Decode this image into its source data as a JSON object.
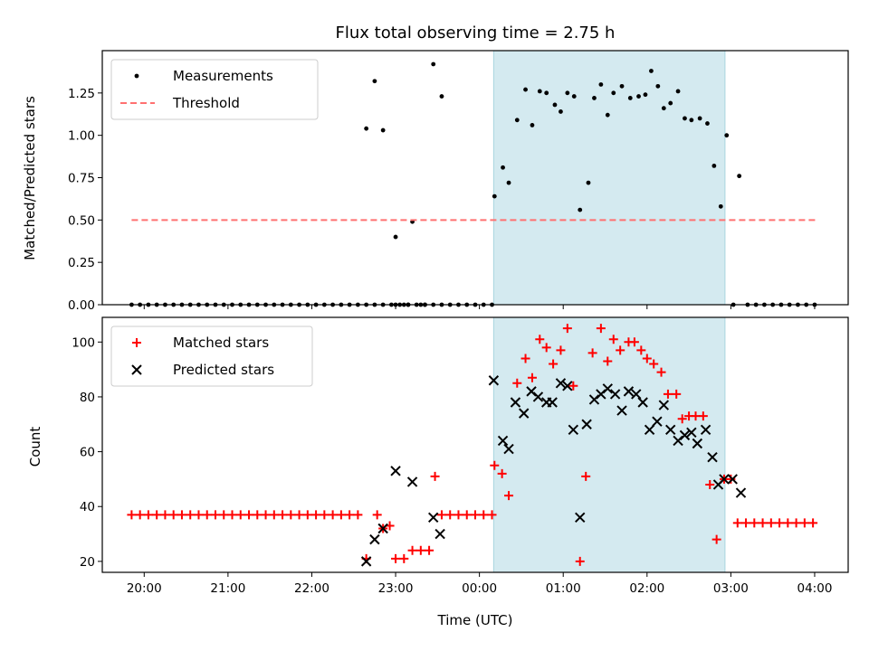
{
  "chart_data": [
    {
      "type": "scatter",
      "title": "Flux total observing time = 2.75 h",
      "xlabel": "",
      "ylabel": "Matched/Predicted stars",
      "x_unit": "hours since 20:00 UTC",
      "xlim": [
        -0.5,
        8.4
      ],
      "ylim": [
        0,
        1.5
      ],
      "yticks": [
        "0.00",
        "0.25",
        "0.50",
        "0.75",
        "1.00",
        "1.25"
      ],
      "yticks_values": [
        0,
        0.25,
        0.5,
        0.75,
        1.0,
        1.25
      ],
      "shaded_interval": [
        4.17,
        6.93
      ],
      "shade_color": "#d4eaf0",
      "legend": {
        "placement": "upper left",
        "entries": [
          "Measurements",
          "Threshold"
        ]
      },
      "series": [
        {
          "name": "Measurements",
          "marker": "dot",
          "color": "#000000",
          "points": [
            [
              -0.15,
              0
            ],
            [
              -0.05,
              0
            ],
            [
              0.05,
              0
            ],
            [
              0.15,
              0
            ],
            [
              0.25,
              0
            ],
            [
              0.35,
              0
            ],
            [
              0.45,
              0
            ],
            [
              0.55,
              0
            ],
            [
              0.65,
              0
            ],
            [
              0.75,
              0
            ],
            [
              0.85,
              0
            ],
            [
              0.95,
              0
            ],
            [
              1.05,
              0
            ],
            [
              1.15,
              0
            ],
            [
              1.25,
              0
            ],
            [
              1.35,
              0
            ],
            [
              1.45,
              0
            ],
            [
              1.55,
              0
            ],
            [
              1.65,
              0
            ],
            [
              1.75,
              0
            ],
            [
              1.85,
              0
            ],
            [
              1.95,
              0
            ],
            [
              2.05,
              0
            ],
            [
              2.15,
              0
            ],
            [
              2.25,
              0
            ],
            [
              2.35,
              0
            ],
            [
              2.45,
              0
            ],
            [
              2.55,
              0
            ],
            [
              2.65,
              0
            ],
            [
              2.75,
              0
            ],
            [
              2.85,
              0
            ],
            [
              2.95,
              0
            ],
            [
              3.05,
              0
            ],
            [
              3.15,
              0
            ],
            [
              3.25,
              0
            ],
            [
              3.35,
              0
            ],
            [
              3.45,
              0
            ],
            [
              3.55,
              0
            ],
            [
              3.0,
              0
            ],
            [
              3.1,
              0
            ],
            [
              3.15,
              0
            ],
            [
              3.3,
              0
            ],
            [
              3.35,
              0
            ],
            [
              2.65,
              1.04
            ],
            [
              2.75,
              1.32
            ],
            [
              2.85,
              1.03
            ],
            [
              3.0,
              0.4
            ],
            [
              3.2,
              0.49
            ],
            [
              3.45,
              1.42
            ],
            [
              3.55,
              1.23
            ],
            [
              3.65,
              0
            ],
            [
              3.75,
              0
            ],
            [
              3.85,
              0
            ],
            [
              3.95,
              0
            ],
            [
              4.05,
              0
            ],
            [
              4.15,
              0
            ],
            [
              4.18,
              0.64
            ],
            [
              4.28,
              0.81
            ],
            [
              4.35,
              0.72
            ],
            [
              4.45,
              1.09
            ],
            [
              4.55,
              1.27
            ],
            [
              4.63,
              1.06
            ],
            [
              4.72,
              1.26
            ],
            [
              4.8,
              1.25
            ],
            [
              4.9,
              1.18
            ],
            [
              4.97,
              1.14
            ],
            [
              5.05,
              1.25
            ],
            [
              5.13,
              1.23
            ],
            [
              5.2,
              0.56
            ],
            [
              5.3,
              0.72
            ],
            [
              5.37,
              1.22
            ],
            [
              5.45,
              1.3
            ],
            [
              5.53,
              1.12
            ],
            [
              5.6,
              1.25
            ],
            [
              5.7,
              1.29
            ],
            [
              5.8,
              1.22
            ],
            [
              5.9,
              1.23
            ],
            [
              5.98,
              1.24
            ],
            [
              6.05,
              1.38
            ],
            [
              6.13,
              1.29
            ],
            [
              6.2,
              1.16
            ],
            [
              6.28,
              1.19
            ],
            [
              6.37,
              1.26
            ],
            [
              6.45,
              1.1
            ],
            [
              6.53,
              1.09
            ],
            [
              6.63,
              1.1
            ],
            [
              6.72,
              1.07
            ],
            [
              6.8,
              0.82
            ],
            [
              6.88,
              0.58
            ],
            [
              6.95,
              1.0
            ],
            [
              7.1,
              0.76
            ],
            [
              7.03,
              0
            ],
            [
              7.2,
              0
            ],
            [
              7.3,
              0
            ],
            [
              7.4,
              0
            ],
            [
              7.5,
              0
            ],
            [
              7.6,
              0
            ],
            [
              7.7,
              0
            ],
            [
              7.8,
              0
            ],
            [
              7.9,
              0
            ],
            [
              8.0,
              0
            ]
          ]
        },
        {
          "name": "Threshold",
          "style": "dashed",
          "color": "#ff7070",
          "x": [
            -0.15,
            8.02
          ],
          "y": [
            0.5,
            0.5
          ]
        }
      ]
    },
    {
      "type": "scatter",
      "title": "",
      "xlabel": "Time (UTC)",
      "ylabel": "Count",
      "x_unit": "hours since 20:00 UTC",
      "xlim": [
        -0.5,
        8.4
      ],
      "ylim": [
        16,
        109
      ],
      "xticks": [
        "20:00",
        "21:00",
        "22:00",
        "23:00",
        "00:00",
        "01:00",
        "02:00",
        "03:00",
        "04:00"
      ],
      "xticks_values": [
        0,
        1,
        2,
        3,
        4,
        5,
        6,
        7,
        8
      ],
      "yticks": [
        "20",
        "40",
        "60",
        "80",
        "100"
      ],
      "yticks_values": [
        20,
        40,
        60,
        80,
        100
      ],
      "shaded_interval": [
        4.17,
        6.93
      ],
      "shade_color": "#d4eaf0",
      "legend": {
        "placement": "upper left",
        "entries": [
          "Matched stars",
          "Predicted stars"
        ]
      },
      "series": [
        {
          "name": "Matched stars",
          "marker": "plus",
          "color": "#ff0000",
          "points": [
            [
              -0.15,
              37
            ],
            [
              -0.05,
              37
            ],
            [
              0.05,
              37
            ],
            [
              0.15,
              37
            ],
            [
              0.25,
              37
            ],
            [
              0.35,
              37
            ],
            [
              0.45,
              37
            ],
            [
              0.55,
              37
            ],
            [
              0.65,
              37
            ],
            [
              0.75,
              37
            ],
            [
              0.85,
              37
            ],
            [
              0.95,
              37
            ],
            [
              1.05,
              37
            ],
            [
              1.15,
              37
            ],
            [
              1.25,
              37
            ],
            [
              1.35,
              37
            ],
            [
              1.45,
              37
            ],
            [
              1.55,
              37
            ],
            [
              1.65,
              37
            ],
            [
              1.75,
              37
            ],
            [
              1.85,
              37
            ],
            [
              1.95,
              37
            ],
            [
              2.05,
              37
            ],
            [
              2.15,
              37
            ],
            [
              2.25,
              37
            ],
            [
              2.35,
              37
            ],
            [
              2.45,
              37
            ],
            [
              2.55,
              37
            ],
            [
              2.65,
              21
            ],
            [
              2.78,
              37
            ],
            [
              2.85,
              32
            ],
            [
              2.93,
              33
            ],
            [
              3.0,
              21
            ],
            [
              3.1,
              21
            ],
            [
              3.2,
              24
            ],
            [
              3.3,
              24
            ],
            [
              3.4,
              24
            ],
            [
              3.47,
              51
            ],
            [
              3.55,
              37
            ],
            [
              3.65,
              37
            ],
            [
              3.75,
              37
            ],
            [
              3.85,
              37
            ],
            [
              3.95,
              37
            ],
            [
              4.05,
              37
            ],
            [
              4.15,
              37
            ],
            [
              4.18,
              55
            ],
            [
              4.27,
              52
            ],
            [
              4.35,
              44
            ],
            [
              4.45,
              85
            ],
            [
              4.55,
              94
            ],
            [
              4.63,
              87
            ],
            [
              4.72,
              101
            ],
            [
              4.8,
              98
            ],
            [
              4.88,
              92
            ],
            [
              4.97,
              97
            ],
            [
              5.05,
              105
            ],
            [
              5.12,
              84
            ],
            [
              5.2,
              20
            ],
            [
              5.27,
              51
            ],
            [
              5.35,
              96
            ],
            [
              5.45,
              105
            ],
            [
              5.53,
              93
            ],
            [
              5.6,
              101
            ],
            [
              5.68,
              97
            ],
            [
              5.78,
              100
            ],
            [
              5.85,
              100
            ],
            [
              5.93,
              97
            ],
            [
              6.0,
              94
            ],
            [
              6.08,
              92
            ],
            [
              6.17,
              89
            ],
            [
              6.25,
              81
            ],
            [
              6.35,
              81
            ],
            [
              6.42,
              72
            ],
            [
              6.5,
              73
            ],
            [
              6.58,
              73
            ],
            [
              6.67,
              73
            ],
            [
              6.75,
              48
            ],
            [
              6.83,
              28
            ],
            [
              6.92,
              50
            ],
            [
              7.0,
              50
            ],
            [
              7.08,
              34
            ],
            [
              7.18,
              34
            ],
            [
              7.28,
              34
            ],
            [
              7.38,
              34
            ],
            [
              7.48,
              34
            ],
            [
              7.58,
              34
            ],
            [
              7.68,
              34
            ],
            [
              7.78,
              34
            ],
            [
              7.88,
              34
            ],
            [
              7.98,
              34
            ]
          ]
        },
        {
          "name": "Predicted stars",
          "marker": "x",
          "color": "#000000",
          "points": [
            [
              2.65,
              20
            ],
            [
              2.75,
              28
            ],
            [
              2.85,
              32
            ],
            [
              3.0,
              53
            ],
            [
              3.2,
              49
            ],
            [
              3.45,
              36
            ],
            [
              3.53,
              30
            ],
            [
              4.17,
              86
            ],
            [
              4.28,
              64
            ],
            [
              4.35,
              61
            ],
            [
              4.43,
              78
            ],
            [
              4.53,
              74
            ],
            [
              4.62,
              82
            ],
            [
              4.7,
              80
            ],
            [
              4.8,
              78
            ],
            [
              4.87,
              78
            ],
            [
              4.97,
              85
            ],
            [
              5.05,
              84
            ],
            [
              5.12,
              68
            ],
            [
              5.2,
              36
            ],
            [
              5.28,
              70
            ],
            [
              5.37,
              79
            ],
            [
              5.45,
              81
            ],
            [
              5.53,
              83
            ],
            [
              5.62,
              81
            ],
            [
              5.7,
              75
            ],
            [
              5.78,
              82
            ],
            [
              5.87,
              81
            ],
            [
              5.95,
              78
            ],
            [
              6.03,
              68
            ],
            [
              6.12,
              71
            ],
            [
              6.2,
              77
            ],
            [
              6.28,
              68
            ],
            [
              6.37,
              64
            ],
            [
              6.45,
              66
            ],
            [
              6.53,
              67
            ],
            [
              6.6,
              63
            ],
            [
              6.7,
              68
            ],
            [
              6.78,
              58
            ],
            [
              6.85,
              48
            ],
            [
              6.92,
              50
            ],
            [
              7.02,
              50
            ],
            [
              7.12,
              45
            ]
          ]
        }
      ]
    }
  ]
}
